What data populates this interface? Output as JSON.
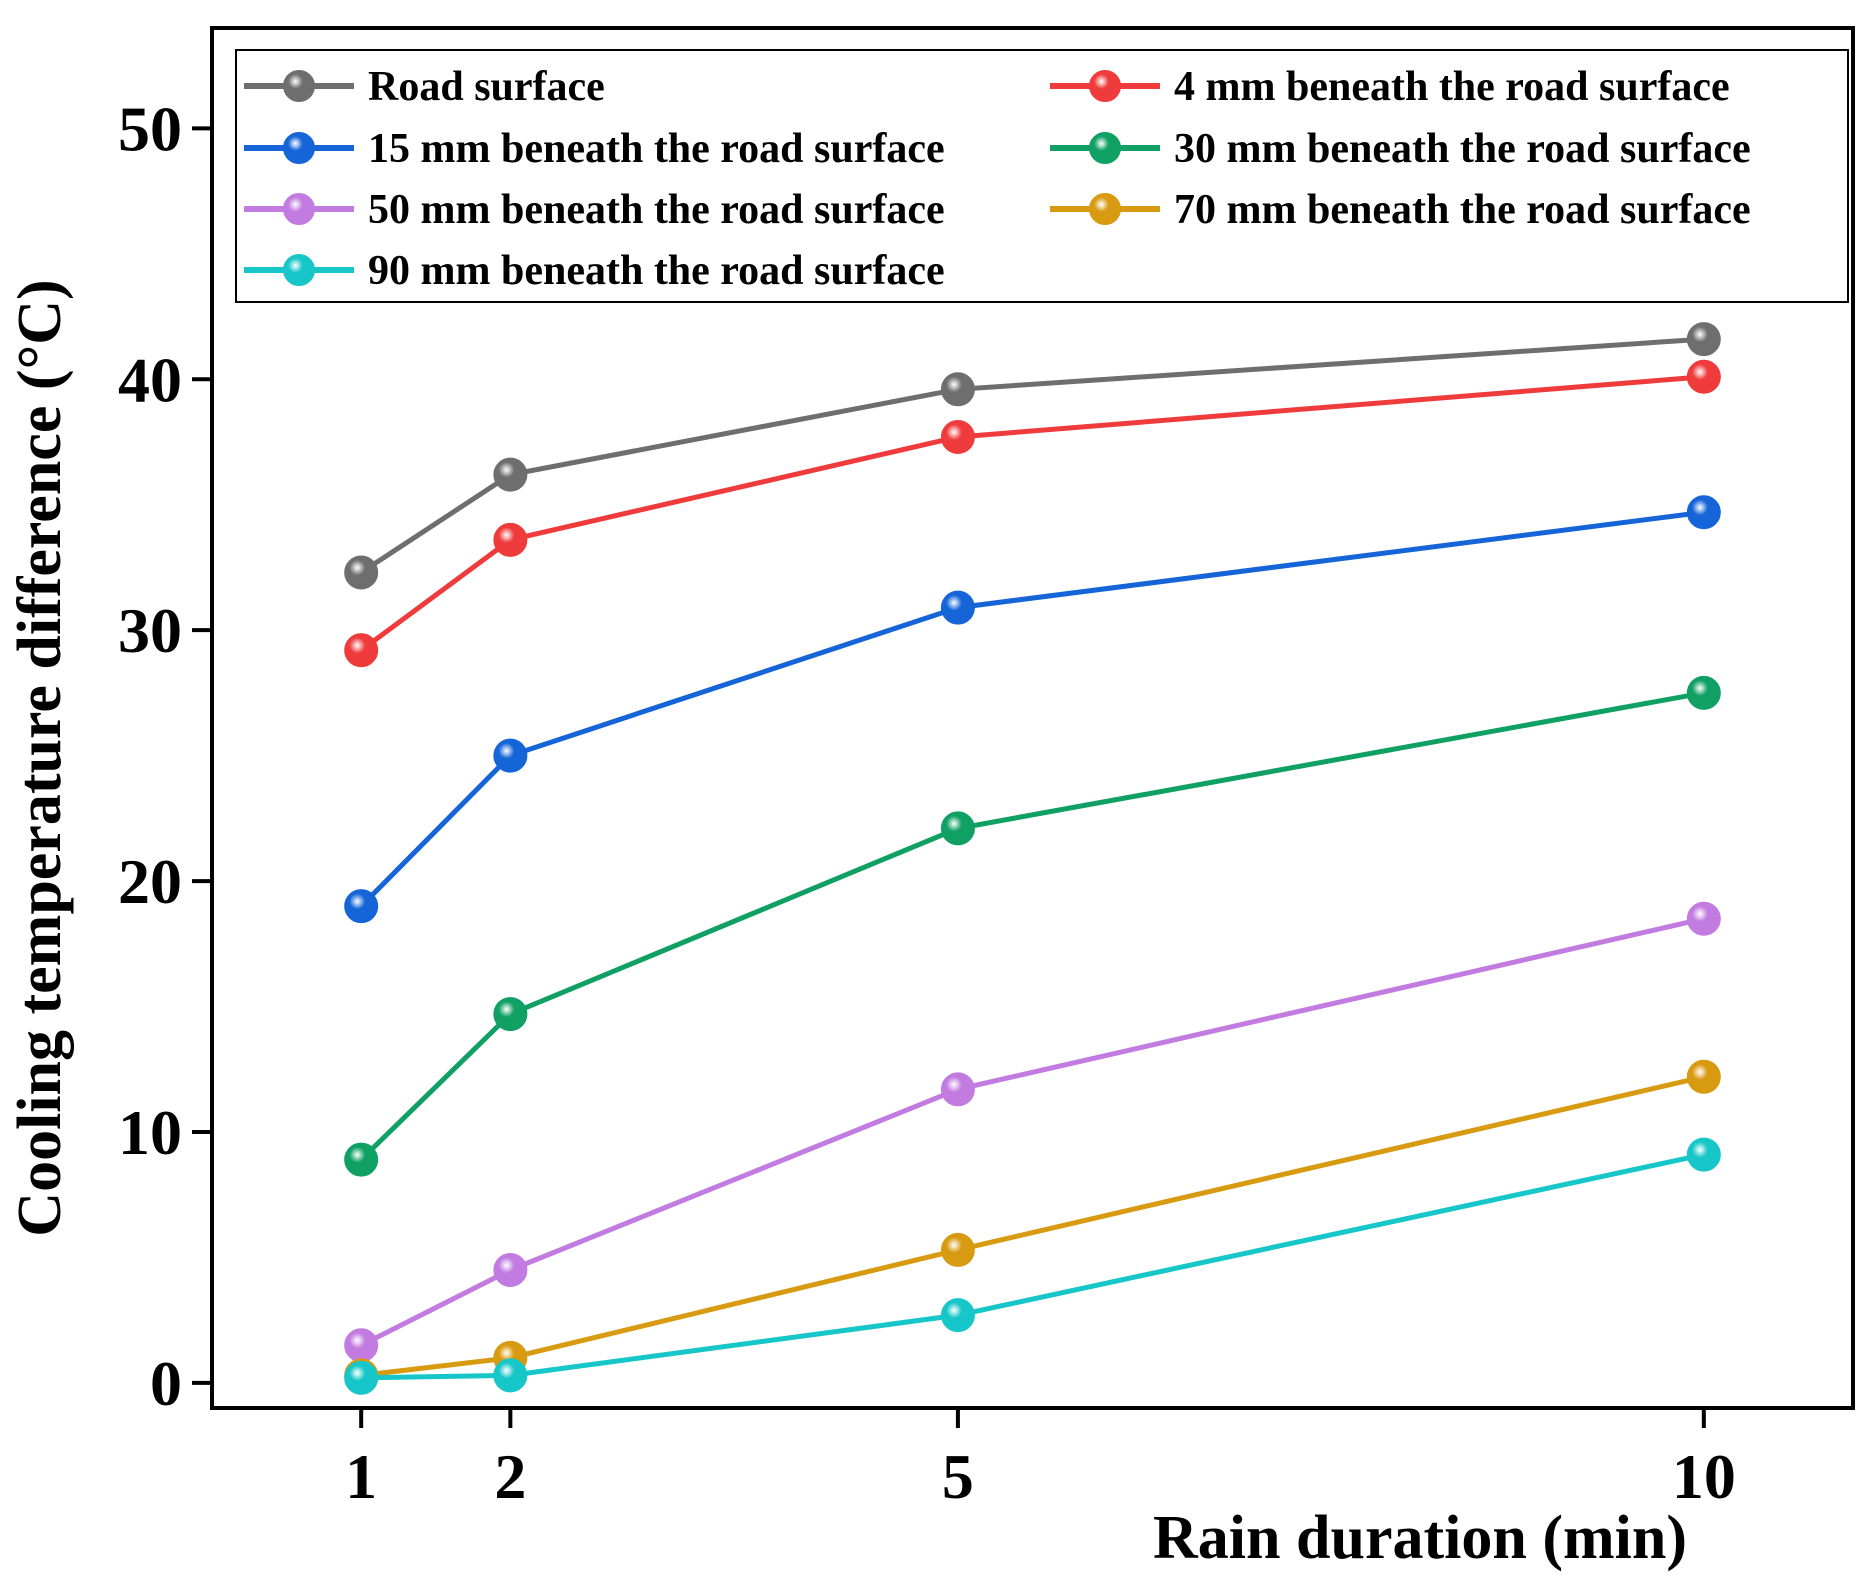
{
  "chart_data": {
    "type": "line",
    "title": "",
    "xlabel": "Rain duration (min)",
    "ylabel": "Cooling temperature difference (°C)",
    "xlim": [
      0,
      11
    ],
    "ylim": [
      -1,
      54
    ],
    "x": [
      1,
      2,
      5,
      10
    ],
    "xticks": [
      1,
      2,
      5,
      10
    ],
    "xtick_labels": [
      "1",
      "2",
      "5",
      "10"
    ],
    "yticks": [
      0,
      10,
      20,
      30,
      40,
      50
    ],
    "ytick_labels": [
      "0",
      "10",
      "20",
      "30",
      "40",
      "50"
    ],
    "grid": false,
    "legend_position": "top",
    "series": [
      {
        "name": "Road surface",
        "color": "#6e6e6e",
        "values": [
          32.3,
          36.2,
          39.6,
          41.6
        ]
      },
      {
        "name": "4 mm beneath the road surface",
        "color": "#ef3b3b",
        "values": [
          29.2,
          33.6,
          37.7,
          40.1
        ]
      },
      {
        "name": "15 mm beneath the road surface",
        "color": "#1565d8",
        "values": [
          19.0,
          25.0,
          30.9,
          34.7
        ]
      },
      {
        "name": "30 mm beneath the road surface",
        "color": "#10a064",
        "values": [
          8.9,
          14.7,
          22.1,
          27.5
        ]
      },
      {
        "name": "50 mm beneath the road surface",
        "color": "#c27be0",
        "values": [
          1.5,
          4.5,
          11.7,
          18.5
        ]
      },
      {
        "name": "70 mm beneath the road surface",
        "color": "#d89a10",
        "values": [
          0.3,
          1.0,
          5.3,
          12.2
        ]
      },
      {
        "name": "90 mm beneath the road surface",
        "color": "#16c6c8",
        "values": [
          0.2,
          0.3,
          2.7,
          9.1
        ]
      }
    ]
  }
}
